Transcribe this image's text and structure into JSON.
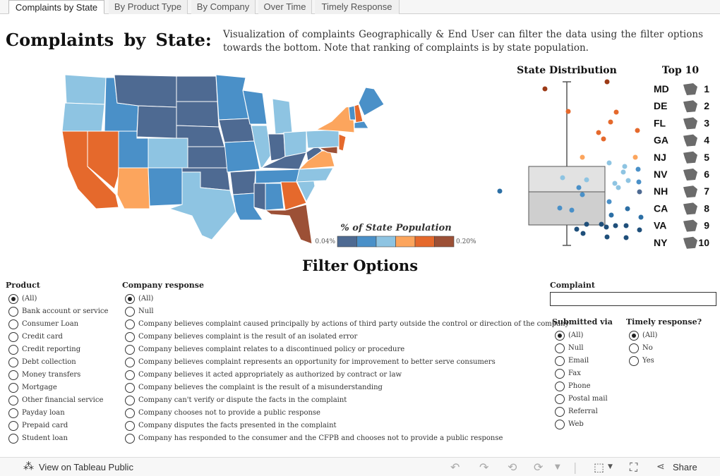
{
  "tabs": [
    "Complaints by State",
    "By Product Type",
    "By Company",
    "Over Time",
    "Timely Response"
  ],
  "header": {
    "title": "Complaints by State:",
    "description": "Visualization of complaints Geographically & End User can filter the data using the filter options towards the bottom. Note that ranking of complaints is by state population."
  },
  "legend": {
    "title": "% of State Population",
    "min": "0.04%",
    "max": "0.20%",
    "colors": [
      "#4e6a92",
      "#4a90c8",
      "#8ec4e2",
      "#fca55d",
      "#e5692c",
      "#9c5036"
    ]
  },
  "distribution": {
    "title": "State Distribution"
  },
  "top10": {
    "title": "Top 10",
    "states": [
      "MD",
      "DE",
      "FL",
      "GA",
      "NJ",
      "NV",
      "NH",
      "CA",
      "VA",
      "NY"
    ],
    "ranks": [
      "1",
      "2",
      "3",
      "4",
      "5",
      "6",
      "7",
      "8",
      "9",
      "10"
    ]
  },
  "filters": {
    "title": "Filter Options",
    "product": {
      "label": "Product",
      "options": [
        "(All)",
        "Bank account or service",
        "Consumer Loan",
        "Credit card",
        "Credit reporting",
        "Debt collection",
        "Money transfers",
        "Mortgage",
        "Other financial service",
        "Payday loan",
        "Prepaid card",
        "Student loan"
      ],
      "selected": "(All)"
    },
    "company_response": {
      "label": "Company response",
      "options": [
        "(All)",
        "Null",
        "Company believes complaint caused principally by actions of third party outside the control or direction of the company",
        "Company believes complaint is the result of an isolated error",
        "Company believes complaint relates to a discontinued policy or procedure",
        "Company believes complaint represents an opportunity for improvement to better serve consumers",
        "Company believes it acted appropriately as authorized by contract or law",
        "Company believes the complaint is the result of a misunderstanding",
        "Company can't verify or dispute the facts in the complaint",
        "Company chooses not to provide a public response",
        "Company disputes the facts presented in the complaint",
        "Company has responded to the consumer and the CFPB and chooses not to provide a public response"
      ],
      "selected": "(All)"
    },
    "complaint": {
      "label": "Complaint",
      "value": ""
    },
    "submitted_via": {
      "label": "Submitted via",
      "options": [
        "(All)",
        "Null",
        "Email",
        "Fax",
        "Phone",
        "Postal mail",
        "Referral",
        "Web"
      ],
      "selected": "(All)"
    },
    "timely_response": {
      "label": "Timely response?",
      "options": [
        "(All)",
        "No",
        "Yes"
      ],
      "selected": "(All)"
    }
  },
  "footer": {
    "view_label": "View on Tableau Public",
    "share_label": "Share"
  }
}
